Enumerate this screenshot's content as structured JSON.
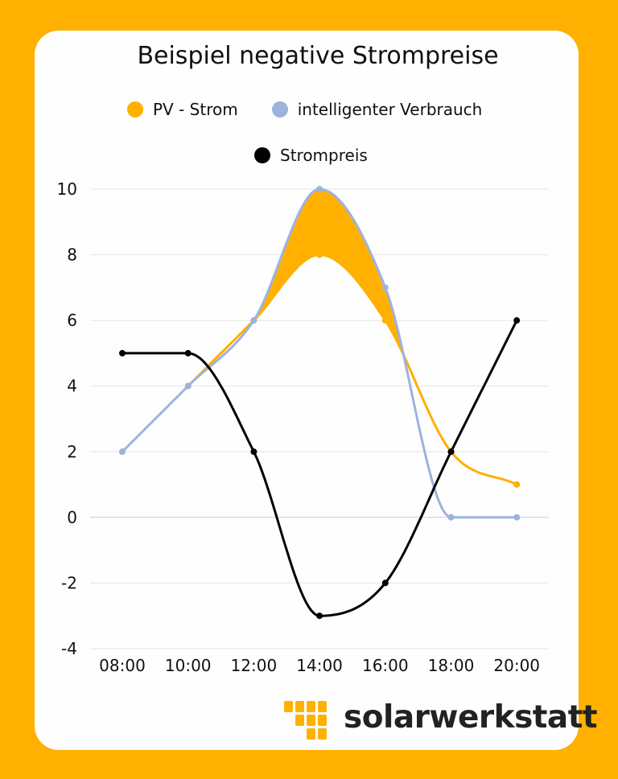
{
  "chart_data": {
    "type": "line",
    "title": "Beispiel negative Strompreise",
    "x": [
      "08:00",
      "10:00",
      "12:00",
      "14:00",
      "16:00",
      "18:00",
      "20:00"
    ],
    "series": [
      {
        "name": "PV - Strom",
        "color": "#ffb000",
        "values": [
          null,
          4,
          6,
          8,
          6,
          2,
          1
        ]
      },
      {
        "name": "intelligenter Verbrauch",
        "color": "#9db3dc",
        "values": [
          2,
          4,
          6,
          10,
          7,
          0,
          0
        ]
      },
      {
        "name": "Strompreis",
        "color": "#000000",
        "values": [
          5,
          5,
          2,
          -3,
          -2,
          2,
          6
        ]
      }
    ],
    "ylim": [
      -4,
      10
    ],
    "yticks": [
      "10",
      "8",
      "6",
      "4",
      "2",
      "0",
      "-2",
      "-4"
    ],
    "grid": true,
    "legend_position": "top"
  },
  "brand": {
    "name": "solarwerkstatt"
  }
}
